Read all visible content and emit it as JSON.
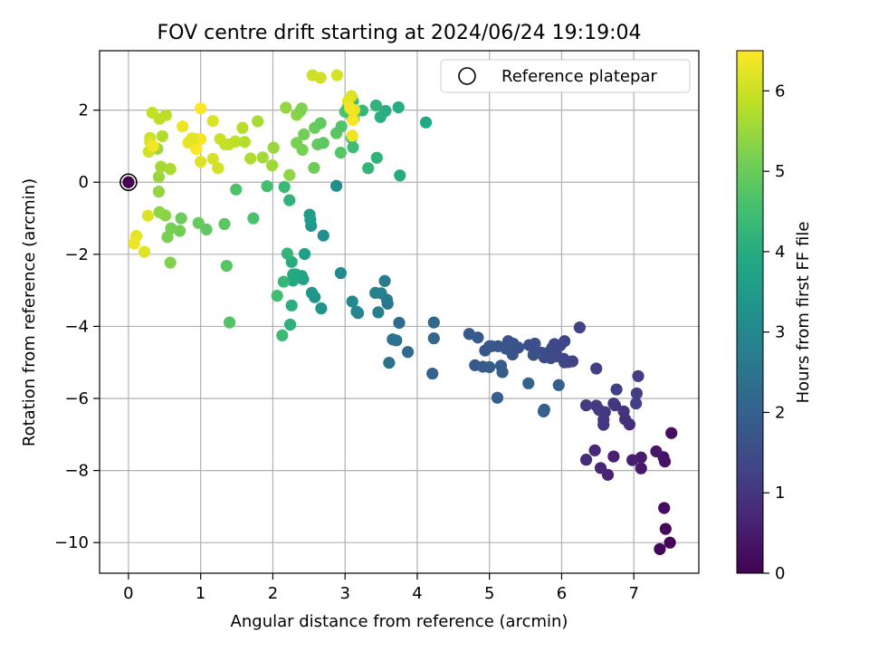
{
  "chart_data": {
    "type": "scatter",
    "title": "FOV centre drift starting at 2024/06/24 19:19:04",
    "xlabel": "Angular distance from reference (arcmin)",
    "ylabel": "Rotation from reference (arcmin)",
    "xlim": [
      -0.4,
      7.9
    ],
    "ylim": [
      -10.85,
      3.65
    ],
    "xticks": [
      0,
      1,
      2,
      3,
      4,
      5,
      6,
      7
    ],
    "yticks": [
      -10,
      -8,
      -6,
      -4,
      -2,
      0,
      2
    ],
    "grid": true,
    "legend": {
      "position": "top-right",
      "entries": [
        "Reference platepar"
      ]
    },
    "colorbar": {
      "label": "Hours from first FF file",
      "range": [
        0,
        6.5
      ],
      "ticks": [
        0,
        1,
        2,
        3,
        4,
        5,
        6
      ],
      "colormap": "viridis"
    },
    "reference_point": {
      "x": 0,
      "y": 0
    },
    "points": [
      [
        7.5,
        -10.0,
        0.05
      ],
      [
        7.36,
        -10.18,
        0.1
      ],
      [
        7.44,
        -9.62,
        0.15
      ],
      [
        7.42,
        -9.04,
        0.2
      ],
      [
        7.52,
        -6.96,
        0.25
      ],
      [
        7.43,
        -7.75,
        0.3
      ],
      [
        7.41,
        -7.63,
        0.35
      ],
      [
        7.31,
        -7.47,
        0.4
      ],
      [
        7.1,
        -7.94,
        0.45
      ],
      [
        7.1,
        -7.64,
        0.5
      ],
      [
        6.98,
        -7.71,
        0.55
      ],
      [
        6.72,
        -7.61,
        0.6
      ],
      [
        6.64,
        -8.12,
        0.65
      ],
      [
        6.54,
        -7.93,
        0.7
      ],
      [
        6.46,
        -7.44,
        0.75
      ],
      [
        6.34,
        -7.7,
        0.8
      ],
      [
        6.94,
        -6.72,
        0.85
      ],
      [
        6.88,
        -6.58,
        0.9
      ],
      [
        6.86,
        -6.36,
        0.95
      ],
      [
        6.74,
        -6.19,
        1.0
      ],
      [
        6.72,
        -6.14,
        1.02
      ],
      [
        6.58,
        -6.73,
        1.04
      ],
      [
        6.58,
        -6.59,
        1.06
      ],
      [
        6.6,
        -6.38,
        1.08
      ],
      [
        6.52,
        -6.32,
        1.1
      ],
      [
        6.48,
        -6.2,
        1.12
      ],
      [
        6.34,
        -6.19,
        1.14
      ],
      [
        7.06,
        -5.38,
        1.16
      ],
      [
        7.04,
        -5.86,
        1.18
      ],
      [
        7.03,
        -6.14,
        1.2
      ],
      [
        6.76,
        -5.75,
        1.22
      ],
      [
        6.48,
        -5.17,
        1.24
      ],
      [
        6.25,
        -4.03,
        1.26
      ],
      [
        6.15,
        -4.97,
        1.28
      ],
      [
        6.09,
        -4.99,
        1.3
      ],
      [
        6.04,
        -5.0,
        1.32
      ],
      [
        6.04,
        -4.41,
        1.34
      ],
      [
        6.03,
        -4.9,
        1.36
      ],
      [
        5.98,
        -4.53,
        1.38
      ],
      [
        5.94,
        -4.83,
        1.4
      ],
      [
        5.9,
        -4.49,
        1.42
      ],
      [
        5.87,
        -4.59,
        1.44
      ],
      [
        5.85,
        -4.88,
        1.46
      ],
      [
        5.8,
        -4.74,
        1.48
      ],
      [
        5.76,
        -4.86,
        1.5
      ],
      [
        5.72,
        -4.73,
        1.52
      ],
      [
        5.67,
        -4.72,
        1.54
      ],
      [
        5.63,
        -4.48,
        1.56
      ],
      [
        5.61,
        -4.79,
        1.58
      ],
      [
        5.55,
        -4.52,
        1.6
      ],
      [
        5.4,
        -4.59,
        1.62
      ],
      [
        5.33,
        -4.48,
        1.64
      ],
      [
        5.32,
        -4.78,
        1.66
      ],
      [
        5.26,
        -4.41,
        1.68
      ],
      [
        5.23,
        -4.62,
        1.7
      ],
      [
        5.12,
        -4.55,
        1.72
      ],
      [
        5.03,
        -4.55,
        1.74
      ],
      [
        5.0,
        -4.55,
        1.76
      ],
      [
        4.94,
        -4.67,
        1.78
      ],
      [
        4.84,
        -4.31,
        1.8
      ],
      [
        4.72,
        -4.21,
        1.82
      ],
      [
        4.8,
        -5.08,
        1.84
      ],
      [
        4.91,
        -5.12,
        1.86
      ],
      [
        5.0,
        -5.13,
        1.88
      ],
      [
        5.16,
        -5.09,
        1.9
      ],
      [
        5.18,
        -5.27,
        1.92
      ],
      [
        5.11,
        -5.98,
        1.94
      ],
      [
        5.96,
        -5.63,
        1.96
      ],
      [
        5.76,
        -6.31,
        1.98
      ],
      [
        5.75,
        -6.36,
        2.0
      ],
      [
        5.54,
        -5.58,
        2.02
      ],
      [
        4.21,
        -5.31,
        2.08
      ],
      [
        4.23,
        -4.33,
        2.14
      ],
      [
        4.23,
        -3.89,
        2.2
      ],
      [
        3.87,
        -4.71,
        2.26
      ],
      [
        3.75,
        -3.9,
        2.32
      ],
      [
        3.71,
        -4.39,
        2.38
      ],
      [
        3.66,
        -4.36,
        2.44
      ],
      [
        3.61,
        -5.01,
        2.5
      ],
      [
        3.59,
        -3.37,
        2.56
      ],
      [
        3.58,
        -3.26,
        2.62
      ],
      [
        3.55,
        -2.74,
        2.68
      ],
      [
        3.5,
        -3.08,
        2.74
      ],
      [
        3.46,
        -3.61,
        2.8
      ],
      [
        3.42,
        -3.07,
        2.86
      ],
      [
        3.18,
        -3.63,
        2.92
      ],
      [
        3.16,
        -3.59,
        2.98
      ],
      [
        3.1,
        -3.31,
        3.04
      ],
      [
        2.94,
        -2.52,
        3.1
      ],
      [
        2.88,
        -0.1,
        3.16
      ],
      [
        2.7,
        -1.48,
        3.22
      ],
      [
        2.67,
        -3.5,
        3.28
      ],
      [
        2.58,
        -3.19,
        3.34
      ],
      [
        2.54,
        -3.07,
        3.4
      ],
      [
        2.53,
        -1.21,
        3.46
      ],
      [
        2.52,
        -1.04,
        3.52
      ],
      [
        2.51,
        -0.9,
        3.58
      ],
      [
        2.44,
        -1.99,
        3.64
      ],
      [
        2.42,
        -2.69,
        3.7
      ],
      [
        2.4,
        -2.6,
        3.76
      ],
      [
        2.32,
        -2.56,
        3.82
      ],
      [
        2.28,
        -2.73,
        3.88
      ],
      [
        2.28,
        -2.56,
        3.94
      ],
      [
        2.26,
        -2.21,
        4.0
      ],
      [
        2.26,
        -3.42,
        4.06
      ],
      [
        2.24,
        -3.95,
        4.12
      ],
      [
        2.23,
        -0.5,
        4.18
      ],
      [
        2.2,
        -1.98,
        4.24
      ],
      [
        2.15,
        -2.76,
        4.3
      ],
      [
        2.16,
        -0.13,
        4.36
      ],
      [
        2.13,
        -4.25,
        4.42
      ],
      [
        2.06,
        -3.15,
        4.48
      ],
      [
        1.92,
        -0.11,
        4.54
      ],
      [
        1.73,
        -1.0,
        4.6
      ],
      [
        1.49,
        -0.2,
        4.66
      ],
      [
        1.4,
        -3.89,
        4.72
      ],
      [
        1.36,
        -2.32,
        4.78
      ],
      [
        1.33,
        -1.16,
        4.84
      ],
      [
        1.08,
        -1.31,
        4.9
      ],
      [
        0.97,
        -1.13,
        4.96
      ],
      [
        0.73,
        -1.0,
        5.02
      ],
      [
        0.71,
        -1.35,
        5.08
      ],
      [
        0.59,
        -1.28,
        5.14
      ],
      [
        0.54,
        -1.52,
        5.2
      ],
      [
        0.58,
        -2.23,
        5.26
      ],
      [
        0.51,
        -0.92,
        5.32
      ],
      [
        0.43,
        -0.83,
        5.38
      ],
      [
        0.42,
        -0.26,
        5.44
      ],
      [
        0.42,
        0.15,
        5.5
      ],
      [
        0.4,
        0.93,
        5.56
      ],
      [
        0.45,
        0.43,
        5.62
      ],
      [
        0.58,
        0.37,
        5.68
      ],
      [
        0.47,
        1.28,
        5.74
      ],
      [
        0.52,
        1.86,
        5.8
      ],
      [
        0.43,
        1.76,
        5.86
      ],
      [
        0.33,
        1.93,
        5.92
      ],
      [
        0.3,
        1.23,
        5.98
      ],
      [
        0.28,
        0.85,
        6.04
      ],
      [
        0.3,
        1.12,
        6.1
      ],
      [
        0.27,
        -0.93,
        6.16
      ],
      [
        0.22,
        -1.93,
        6.22
      ],
      [
        0.11,
        -1.49,
        6.28
      ],
      [
        0.08,
        -1.7,
        6.34
      ],
      [
        0.34,
        1.01,
        6.4
      ],
      [
        0.94,
        0.92,
        6.46
      ],
      [
        1.0,
        2.05,
        6.5
      ],
      [
        1.0,
        1.2,
        6.45
      ],
      [
        0.94,
        1.2,
        6.4
      ],
      [
        0.75,
        1.55,
        6.35
      ],
      [
        0.83,
        1.1,
        6.3
      ],
      [
        0.88,
        1.22,
        6.25
      ],
      [
        1.0,
        0.57,
        6.2
      ],
      [
        1.17,
        1.7,
        6.15
      ],
      [
        1.17,
        0.65,
        6.1
      ],
      [
        1.24,
        0.39,
        6.05
      ],
      [
        1.27,
        1.2,
        6.0
      ],
      [
        1.39,
        1.05,
        5.95
      ],
      [
        1.34,
        1.05,
        5.9
      ],
      [
        1.48,
        1.13,
        5.85
      ],
      [
        1.58,
        1.51,
        5.8
      ],
      [
        1.61,
        1.12,
        5.75
      ],
      [
        1.69,
        0.66,
        5.7
      ],
      [
        1.79,
        1.69,
        5.65
      ],
      [
        1.86,
        0.69,
        5.6
      ],
      [
        1.99,
        0.47,
        5.55
      ],
      [
        2.01,
        0.96,
        5.5
      ],
      [
        2.18,
        2.07,
        5.45
      ],
      [
        2.23,
        0.2,
        5.4
      ],
      [
        2.33,
        1.87,
        5.35
      ],
      [
        2.38,
        1.97,
        5.3
      ],
      [
        2.4,
        2.05,
        5.25
      ],
      [
        2.33,
        1.09,
        5.2
      ],
      [
        2.41,
        0.9,
        5.15
      ],
      [
        2.43,
        1.33,
        5.1
      ],
      [
        2.57,
        0.4,
        5.05
      ],
      [
        2.58,
        1.51,
        5.0
      ],
      [
        2.62,
        1.05,
        4.95
      ],
      [
        2.66,
        1.64,
        4.9
      ],
      [
        2.7,
        1.09,
        4.85
      ],
      [
        2.88,
        1.36,
        4.8
      ],
      [
        2.94,
        0.82,
        4.75
      ],
      [
        2.95,
        1.55,
        4.7
      ],
      [
        3.0,
        1.96,
        4.65
      ],
      [
        3.04,
        2.11,
        4.6
      ],
      [
        3.09,
        1.23,
        4.55
      ],
      [
        3.1,
        1.8,
        4.5
      ],
      [
        3.11,
        0.97,
        4.45
      ],
      [
        3.11,
        2.25,
        4.4
      ],
      [
        3.12,
        1.76,
        4.35
      ],
      [
        3.24,
        1.99,
        4.3
      ],
      [
        3.32,
        0.39,
        4.25
      ],
      [
        3.43,
        2.13,
        4.2
      ],
      [
        3.44,
        0.68,
        4.15
      ],
      [
        3.49,
        1.81,
        4.1
      ],
      [
        3.56,
        1.98,
        4.05
      ],
      [
        3.74,
        2.08,
        4.0
      ],
      [
        3.76,
        0.19,
        3.95
      ],
      [
        4.12,
        1.66,
        3.9
      ],
      [
        2.55,
        2.97,
        6.0
      ],
      [
        2.66,
        2.9,
        6.05
      ],
      [
        2.89,
        2.97,
        6.1
      ],
      [
        3.09,
        2.39,
        6.15
      ],
      [
        3.13,
        2.01,
        6.2
      ],
      [
        3.04,
        2.25,
        6.25
      ],
      [
        3.11,
        1.98,
        6.3
      ],
      [
        3.1,
        1.29,
        6.35
      ],
      [
        3.07,
        2.06,
        6.4
      ],
      [
        3.11,
        1.73,
        6.45
      ]
    ]
  }
}
